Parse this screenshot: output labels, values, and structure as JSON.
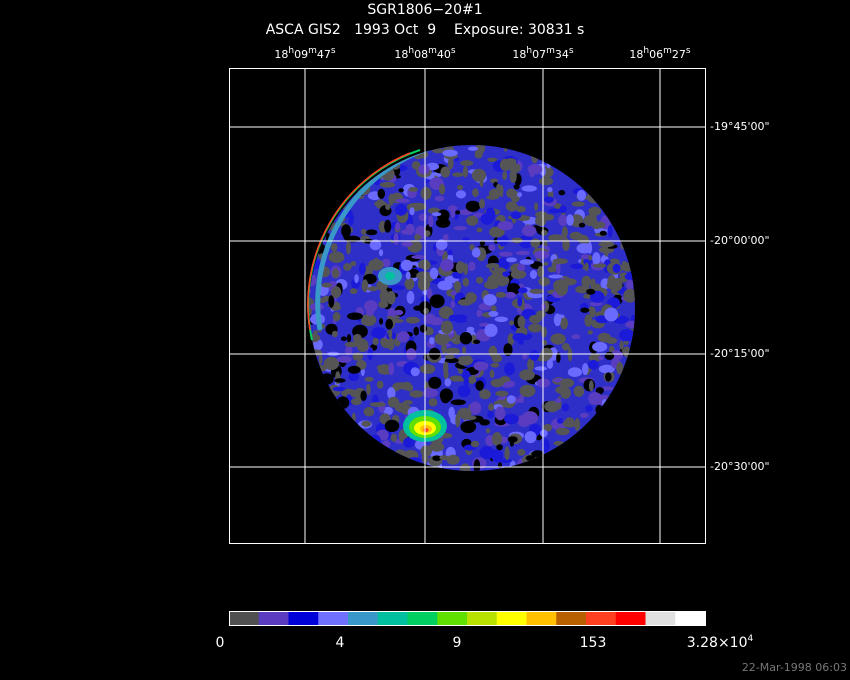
{
  "header": {
    "title": "SGR1806−20#1",
    "subtitle": "ASCA GIS2   1993 Oct  9    Exposure: 30831 s"
  },
  "ra_labels": [
    [
      "18",
      "h",
      "09",
      "m",
      "47",
      "s"
    ],
    [
      "18",
      "h",
      "08",
      "m",
      "40",
      "s"
    ],
    [
      "18",
      "h",
      "07",
      "m",
      "34",
      "s"
    ],
    [
      "18",
      "h",
      "06",
      "m",
      "27",
      "s"
    ]
  ],
  "dec_labels": [
    "-19°45'00\"",
    "-20°00'00\"",
    "-20°15'00\"",
    "-20°30'00\""
  ],
  "colorbar": {
    "colors": [
      "#505050",
      "#5a3cc0",
      "#0000d8",
      "#7070ff",
      "#3a98c8",
      "#00c0a0",
      "#00d060",
      "#60e000",
      "#b8e000",
      "#ffff00",
      "#ffc000",
      "#b86000",
      "#ff4020",
      "#ff0000",
      "#e0e0e0",
      "#ffffff"
    ],
    "labels": [
      [
        "0"
      ],
      [
        "4"
      ],
      [
        "9"
      ],
      [
        "153"
      ],
      [
        "3.28×10",
        "4"
      ]
    ]
  },
  "timestamp": "22-Mar-1998 06:03"
}
